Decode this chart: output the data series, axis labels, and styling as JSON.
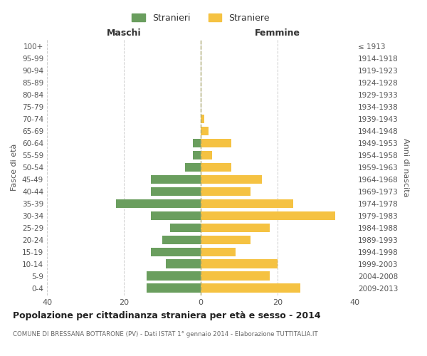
{
  "age_groups": [
    "0-4",
    "5-9",
    "10-14",
    "15-19",
    "20-24",
    "25-29",
    "30-34",
    "35-39",
    "40-44",
    "45-49",
    "50-54",
    "55-59",
    "60-64",
    "65-69",
    "70-74",
    "75-79",
    "80-84",
    "85-89",
    "90-94",
    "95-99",
    "100+"
  ],
  "birth_years": [
    "2009-2013",
    "2004-2008",
    "1999-2003",
    "1994-1998",
    "1989-1993",
    "1984-1988",
    "1979-1983",
    "1974-1978",
    "1969-1973",
    "1964-1968",
    "1959-1963",
    "1954-1958",
    "1949-1953",
    "1944-1948",
    "1939-1943",
    "1934-1938",
    "1929-1933",
    "1924-1928",
    "1919-1923",
    "1914-1918",
    "≤ 1913"
  ],
  "maschi": [
    14,
    14,
    9,
    13,
    10,
    8,
    13,
    22,
    13,
    13,
    4,
    2,
    2,
    0,
    0,
    0,
    0,
    0,
    0,
    0,
    0
  ],
  "femmine": [
    26,
    18,
    20,
    9,
    13,
    18,
    35,
    24,
    13,
    16,
    8,
    3,
    8,
    2,
    1,
    0,
    0,
    0,
    0,
    0,
    0
  ],
  "maschi_color": "#6a9e5e",
  "femmine_color": "#f5c242",
  "background_color": "#ffffff",
  "grid_color": "#cccccc",
  "xlim": 40,
  "title": "Popolazione per cittadinanza straniera per età e sesso - 2014",
  "subtitle": "COMUNE DI BRESSANA BOTTARONE (PV) - Dati ISTAT 1° gennaio 2014 - Elaborazione TUTTITALIA.IT",
  "xlabel_left": "Maschi",
  "xlabel_right": "Femmine",
  "ylabel_left": "Fasce di età",
  "ylabel_right": "Anni di nascita",
  "legend_maschi": "Stranieri",
  "legend_femmine": "Straniere"
}
